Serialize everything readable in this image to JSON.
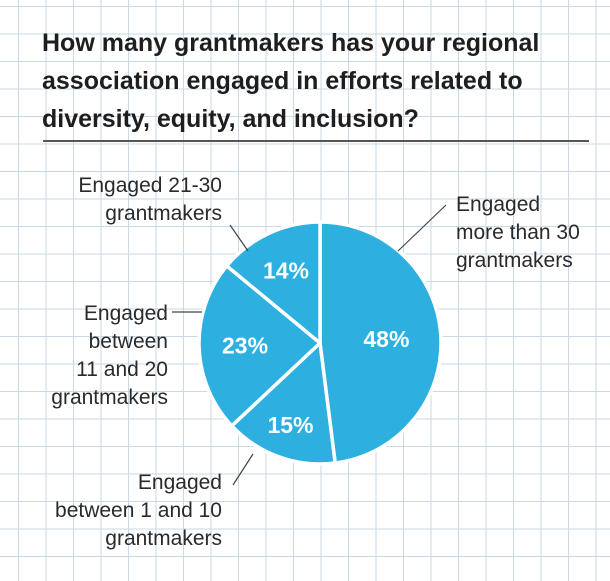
{
  "chart_data": {
    "type": "pie",
    "title": "How many grantmakers has your regional association engaged in efforts related to diversity, equity, and inclusion?",
    "slices": [
      {
        "label": [
          "Engaged",
          "more than 30",
          "grantmakers"
        ],
        "value": 48,
        "value_label": "48%"
      },
      {
        "label": [
          "Engaged",
          "between 1 and 10",
          "grantmakers"
        ],
        "value": 15,
        "value_label": "15%"
      },
      {
        "label": [
          "Engaged",
          "between",
          "11 and 20",
          "grantmakers"
        ],
        "value": 23,
        "value_label": "23%"
      },
      {
        "label": [
          "Engaged 21-30",
          "grantmakers"
        ],
        "value": 14,
        "value_label": "14%"
      }
    ],
    "start_angle_deg": 0,
    "direction": "clockwise",
    "colors": {
      "slice": "#2db0e0",
      "separator": "#ffffff",
      "leader": "#444444"
    }
  }
}
